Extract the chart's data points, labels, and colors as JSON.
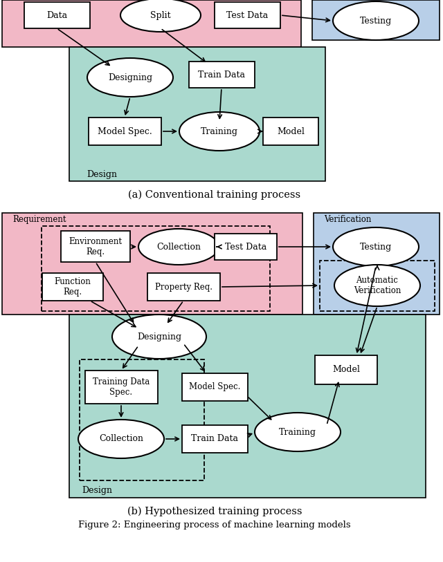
{
  "fig_width": 6.4,
  "fig_height": 8.13,
  "dpi": 100,
  "bg_color": "#ffffff",
  "pink_color": "#f2b8c6",
  "blue_color": "#b8cfe8",
  "teal_color": "#aad9ce",
  "caption_a": "(a) Conventional training process",
  "caption_b": "(b) Hypothesized training process",
  "figure_caption": "Figure 2: Engineering process of machine learning models"
}
